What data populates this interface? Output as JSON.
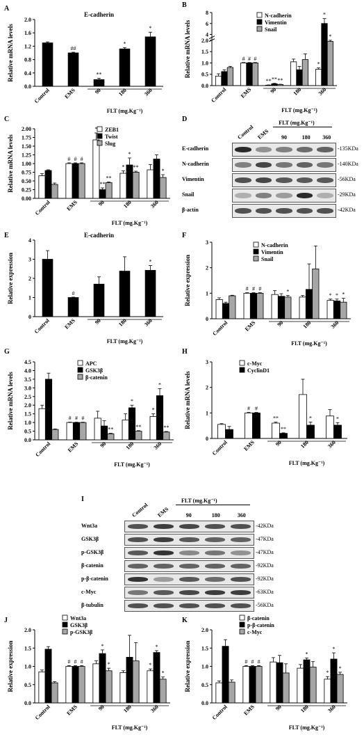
{
  "panels": {
    "A": "A",
    "B": "B",
    "C": "C",
    "D": "D",
    "E": "E",
    "F": "F",
    "G": "G",
    "H": "H",
    "I": "I",
    "J": "J",
    "K": "K"
  },
  "colors": {
    "white": "#ffffff",
    "black": "#000000",
    "gray": "#a6a6a6"
  },
  "blot_D": {
    "lanes": [
      "Control",
      "EMS",
      "90",
      "180",
      "360"
    ],
    "group_label": "FLT (mg.Kg⁻¹)",
    "rows": [
      {
        "label": "E-cadherin",
        "size": "-135KDa",
        "intensity": [
          1.0,
          0.45,
          0.55,
          0.65,
          0.7
        ]
      },
      {
        "label": "N-cadherin",
        "size": "-140KDa",
        "intensity": [
          0.55,
          0.85,
          0.6,
          0.7,
          0.6
        ]
      },
      {
        "label": "Vimentin",
        "size": "-56KDa",
        "intensity": [
          0.8,
          0.85,
          0.75,
          0.75,
          0.75
        ]
      },
      {
        "label": "Snail",
        "size": "-29KDa",
        "intensity": [
          0.3,
          0.55,
          0.4,
          1.0,
          0.3
        ]
      },
      {
        "label": "β-actin",
        "size": "-42KDa",
        "intensity": [
          0.8,
          0.8,
          0.8,
          0.8,
          0.8
        ]
      }
    ]
  },
  "blot_I": {
    "lanes": [
      "Control",
      "EMS",
      "90",
      "180",
      "360"
    ],
    "group_label": "FLT (mg.Kg⁻¹)",
    "rows": [
      {
        "label": "Wnt3a",
        "size": "-42KDa",
        "intensity": [
          0.8,
          0.9,
          0.85,
          0.8,
          0.8
        ]
      },
      {
        "label": "GSK3β",
        "size": "-47KDa",
        "intensity": [
          0.8,
          0.9,
          0.75,
          0.7,
          0.7
        ]
      },
      {
        "label": "p-GSK3β",
        "size": "-47KDa",
        "intensity": [
          0.75,
          0.95,
          0.5,
          0.6,
          0.45
        ]
      },
      {
        "label": "β-catenin",
        "size": "-92KDa",
        "intensity": [
          0.7,
          0.7,
          0.7,
          0.7,
          0.7
        ]
      },
      {
        "label": "p-β-catenin",
        "size": "-92KDa",
        "intensity": [
          0.95,
          0.4,
          0.75,
          0.65,
          0.8
        ]
      },
      {
        "label": "c-Myc",
        "size": "-63KDa",
        "intensity": [
          0.6,
          0.75,
          0.85,
          0.9,
          0.9
        ]
      },
      {
        "label": "β-tubulin",
        "size": "-56KDa",
        "intensity": [
          0.8,
          0.8,
          0.8,
          0.8,
          0.8
        ]
      }
    ]
  },
  "chart_data": [
    {
      "id": "A",
      "type": "bar",
      "title": "E-cadherin",
      "ylabel": "Relative mRNA levels",
      "xlabel": "FLT (mg.Kg⁻¹)",
      "ylim": [
        0,
        2.0
      ],
      "yticks": [
        "0.0",
        "0.4",
        "0.8",
        "1.2",
        "1.6",
        "2.0"
      ],
      "categories": [
        "Control",
        "EMS",
        "90",
        "180",
        "360"
      ],
      "series": [
        {
          "color": "#000000",
          "values": [
            1.3,
            1.0,
            0.2,
            1.12,
            1.48
          ],
          "errors": [
            0.03,
            0.02,
            0.04,
            0.04,
            0.14
          ]
        }
      ],
      "annotations": [
        "",
        "##",
        "**",
        "*",
        "*"
      ]
    },
    {
      "id": "B",
      "type": "bar",
      "ylabel": "Relative mRNA levels",
      "xlabel": "FLT (mg.Kg⁻¹)",
      "broken_axis": true,
      "ylim": [
        0,
        8
      ],
      "yticks": [
        "0.0",
        "0.5",
        "1.0",
        "1.5",
        "2.0",
        "4",
        "6",
        "8"
      ],
      "categories": [
        "Control",
        "EMS",
        "90",
        "180",
        "360"
      ],
      "series": [
        {
          "name": "N-cadherin",
          "color": "#ffffff",
          "values": [
            0.42,
            1.0,
            0.02,
            1.05,
            0.72
          ],
          "errors": [
            0.1,
            0.02,
            0.01,
            0.12,
            0.06
          ]
        },
        {
          "name": "Vimentin",
          "color": "#000000",
          "values": [
            0.62,
            1.0,
            0.08,
            0.7,
            6.0
          ],
          "errors": [
            0.08,
            0.02,
            0.02,
            0.15,
            0.9
          ]
        },
        {
          "name": "Snail",
          "color": "#a6a6a6",
          "values": [
            0.8,
            1.0,
            0.05,
            1.15,
            1.95
          ],
          "errors": [
            0.05,
            0.02,
            0.01,
            0.25,
            0.25
          ]
        }
      ],
      "annotations": [
        [
          "",
          "",
          ""
        ],
        [
          "#",
          "#",
          "#"
        ],
        [
          "**",
          "**",
          "**"
        ],
        [
          "",
          "",
          ""
        ],
        [
          "*",
          "*",
          "*"
        ]
      ]
    },
    {
      "id": "C",
      "type": "bar",
      "ylabel": "Relative mRNA levels",
      "xlabel": "FLT (mg.Kg⁻¹)",
      "ylim": [
        0,
        2.0
      ],
      "yticks": [
        "0.00",
        "0.25",
        "0.50",
        "0.75",
        "1.00",
        "1.25",
        "1.50",
        "1.75",
        "2.00"
      ],
      "categories": [
        "Control",
        "EMS",
        "90",
        "180",
        "360"
      ],
      "series": [
        {
          "name": "ZEB1",
          "color": "#ffffff",
          "values": [
            0.65,
            1.0,
            1.68,
            0.72,
            0.82
          ],
          "errors": [
            0.06,
            0.02,
            0.2,
            0.07,
            0.15
          ]
        },
        {
          "name": "Twist",
          "color": "#000000",
          "values": [
            0.8,
            1.0,
            0.25,
            0.96,
            1.13
          ],
          "errors": [
            0.02,
            0.02,
            0.05,
            0.2,
            0.12
          ]
        },
        {
          "name": "Slug",
          "color": "#a6a6a6",
          "values": [
            0.4,
            1.0,
            0.45,
            0.75,
            0.6
          ],
          "errors": [
            0.04,
            0.02,
            0.02,
            0.03,
            0.08
          ]
        }
      ],
      "annotations": [
        [
          "",
          "",
          ""
        ],
        [
          "#",
          "#",
          "#"
        ],
        [
          "*",
          "**",
          "**"
        ],
        [
          "*",
          "*",
          "**"
        ],
        [
          "",
          "",
          "*"
        ]
      ]
    },
    {
      "id": "E",
      "type": "bar",
      "title": "E-cadherin",
      "ylabel": "Relative expression",
      "xlabel": "FLT (mg.Kg⁻¹)",
      "ylim": [
        0,
        4
      ],
      "yticks": [
        "0",
        "1",
        "2",
        "3",
        "4"
      ],
      "categories": [
        "Control",
        "EMS",
        "90",
        "180",
        "360"
      ],
      "series": [
        {
          "color": "#000000",
          "values": [
            3.0,
            1.0,
            1.7,
            2.38,
            2.42
          ],
          "errors": [
            0.45,
            0.02,
            0.38,
            0.75,
            0.25
          ]
        }
      ],
      "annotations": [
        "",
        "#",
        "",
        "",
        "*"
      ]
    },
    {
      "id": "F",
      "type": "bar",
      "ylabel": "Relative expression",
      "xlabel": "FLT (mg.Kg⁻¹)",
      "ylim": [
        0,
        3
      ],
      "yticks": [
        "0",
        "1",
        "2",
        "3"
      ],
      "categories": [
        "Control",
        "EMS",
        "90",
        "180",
        "360"
      ],
      "series": [
        {
          "name": "N-cadherin",
          "color": "#ffffff",
          "values": [
            0.75,
            1.0,
            0.95,
            0.85,
            0.72
          ],
          "errors": [
            0.07,
            0.02,
            0.15,
            0.06,
            0.05
          ]
        },
        {
          "name": "Vimentin",
          "color": "#000000",
          "values": [
            0.6,
            1.0,
            0.88,
            1.15,
            0.7
          ],
          "errors": [
            0.05,
            0.02,
            0.1,
            1.0,
            0.07
          ]
        },
        {
          "name": "Snail",
          "color": "#a6a6a6",
          "values": [
            0.9,
            1.0,
            0.85,
            1.95,
            0.65
          ],
          "errors": [
            0.02,
            0.02,
            0.06,
            0.9,
            0.15
          ]
        }
      ],
      "annotations": [
        [
          "",
          "",
          ""
        ],
        [
          "#",
          "#",
          "#"
        ],
        [
          "",
          "",
          "*"
        ],
        [
          "",
          "",
          ""
        ],
        [
          "*",
          "*",
          "*"
        ]
      ]
    },
    {
      "id": "G",
      "type": "bar",
      "ylabel": "Relative mRNA levels",
      "xlabel": "FLT (mg.Kg⁻¹)",
      "ylim": [
        0,
        4.5
      ],
      "yticks": [
        "0.0",
        "0.5",
        "1.0",
        "1.5",
        "2.0",
        "2.5",
        "3.0",
        "3.5",
        "4.0",
        "4.5"
      ],
      "categories": [
        "Control",
        "EMS",
        "90",
        "180",
        "360"
      ],
      "series": [
        {
          "name": "APC",
          "color": "#ffffff",
          "values": [
            1.8,
            1.0,
            1.25,
            1.15,
            1.35
          ],
          "errors": [
            0.2,
            0.02,
            0.4,
            0.35,
            0.15
          ]
        },
        {
          "name": "GSK3β",
          "color": "#000000",
          "values": [
            3.5,
            1.0,
            0.8,
            1.85,
            2.55
          ],
          "errors": [
            0.35,
            0.02,
            0.3,
            0.15,
            0.4
          ]
        },
        {
          "name": "β-catenin",
          "color": "#a6a6a6",
          "values": [
            0.6,
            1.0,
            0.35,
            0.5,
            0.45
          ],
          "errors": [
            0.03,
            0.02,
            0.03,
            0.03,
            0.03
          ]
        }
      ],
      "annotations": [
        [
          "",
          "",
          ""
        ],
        [
          "#",
          "#",
          "#"
        ],
        [
          "",
          "",
          "**"
        ],
        [
          "",
          "*",
          "**"
        ],
        [
          "*",
          "*",
          "**"
        ]
      ]
    },
    {
      "id": "H",
      "type": "bar",
      "ylabel": "Relative mRNA levels",
      "xlabel": "FLT (mg.Kg⁻¹)",
      "ylim": [
        0,
        3
      ],
      "yticks": [
        "0",
        "1",
        "2",
        "3"
      ],
      "categories": [
        "Control",
        "EMS",
        "90",
        "180",
        "360"
      ],
      "series": [
        {
          "name": "c-Myc",
          "color": "#ffffff",
          "values": [
            0.55,
            1.0,
            0.6,
            1.72,
            0.88
          ],
          "errors": [
            0.03,
            0.02,
            0.04,
            0.6,
            0.25
          ]
        },
        {
          "name": "CyclinD1",
          "color": "#000000",
          "values": [
            0.35,
            1.0,
            0.2,
            0.52,
            0.52
          ],
          "errors": [
            0.12,
            0.02,
            0.02,
            0.12,
            0.1
          ]
        }
      ],
      "annotations": [
        [
          "",
          ""
        ],
        [
          "#",
          "#"
        ],
        [
          "**",
          "**"
        ],
        [
          "",
          "*"
        ],
        [
          "",
          "*"
        ]
      ]
    },
    {
      "id": "J",
      "type": "bar",
      "ylabel": "Relative expression",
      "xlabel": "FLT (mg.Kg⁻¹)",
      "ylim": [
        0,
        2.0
      ],
      "yticks": [
        "0.0",
        "0.5",
        "1.0",
        "1.5",
        "2.0"
      ],
      "categories": [
        "Control",
        "EMS",
        "90",
        "180",
        "360"
      ],
      "series": [
        {
          "name": "Wnt3a",
          "color": "#ffffff",
          "values": [
            0.85,
            1.0,
            1.07,
            0.83,
            0.88
          ],
          "errors": [
            0.05,
            0.02,
            0.08,
            0.05,
            0.05
          ]
        },
        {
          "name": "GSK3β",
          "color": "#000000",
          "values": [
            1.47,
            1.0,
            1.35,
            1.25,
            1.38
          ],
          "errors": [
            0.07,
            0.02,
            0.1,
            0.6,
            0.05
          ]
        },
        {
          "name": "p-GSK3β",
          "color": "#a6a6a6",
          "values": [
            0.55,
            1.0,
            0.88,
            1.15,
            0.65
          ],
          "errors": [
            0.03,
            0.02,
            0.07,
            0.5,
            0.06
          ]
        }
      ],
      "annotations": [
        [
          "",
          "",
          ""
        ],
        [
          "#",
          "#",
          "#"
        ],
        [
          "",
          "*",
          "*"
        ],
        [
          "",
          "",
          ""
        ],
        [
          "*",
          "*",
          "*"
        ]
      ]
    },
    {
      "id": "K",
      "type": "bar",
      "ylabel": "Relative expression",
      "xlabel": "FLT (mg.Kg⁻¹)",
      "ylim": [
        0,
        2.0
      ],
      "yticks": [
        "0.0",
        "0.5",
        "1.0",
        "1.5",
        "2.0"
      ],
      "categories": [
        "Control",
        "EMS",
        "90",
        "180",
        "360"
      ],
      "series": [
        {
          "name": "β-catenin",
          "color": "#ffffff",
          "values": [
            0.55,
            1.0,
            1.12,
            0.95,
            0.65
          ],
          "errors": [
            0.05,
            0.02,
            0.12,
            0.1,
            0.07
          ]
        },
        {
          "name": "p-β-catenin",
          "color": "#000000",
          "values": [
            1.55,
            1.0,
            1.1,
            1.18,
            1.2
          ],
          "errors": [
            0.18,
            0.02,
            0.2,
            0.05,
            0.17
          ]
        },
        {
          "name": "c-Myc",
          "color": "#a6a6a6",
          "values": [
            0.57,
            1.0,
            0.82,
            0.98,
            0.78
          ],
          "errors": [
            0.06,
            0.02,
            0.25,
            0.15,
            0.06
          ]
        }
      ],
      "annotations": [
        [
          "",
          "",
          ""
        ],
        [
          "#",
          "#",
          "#"
        ],
        [
          "",
          "",
          ""
        ],
        [
          "",
          "*",
          ""
        ],
        [
          "*",
          "*",
          "*"
        ]
      ]
    }
  ]
}
